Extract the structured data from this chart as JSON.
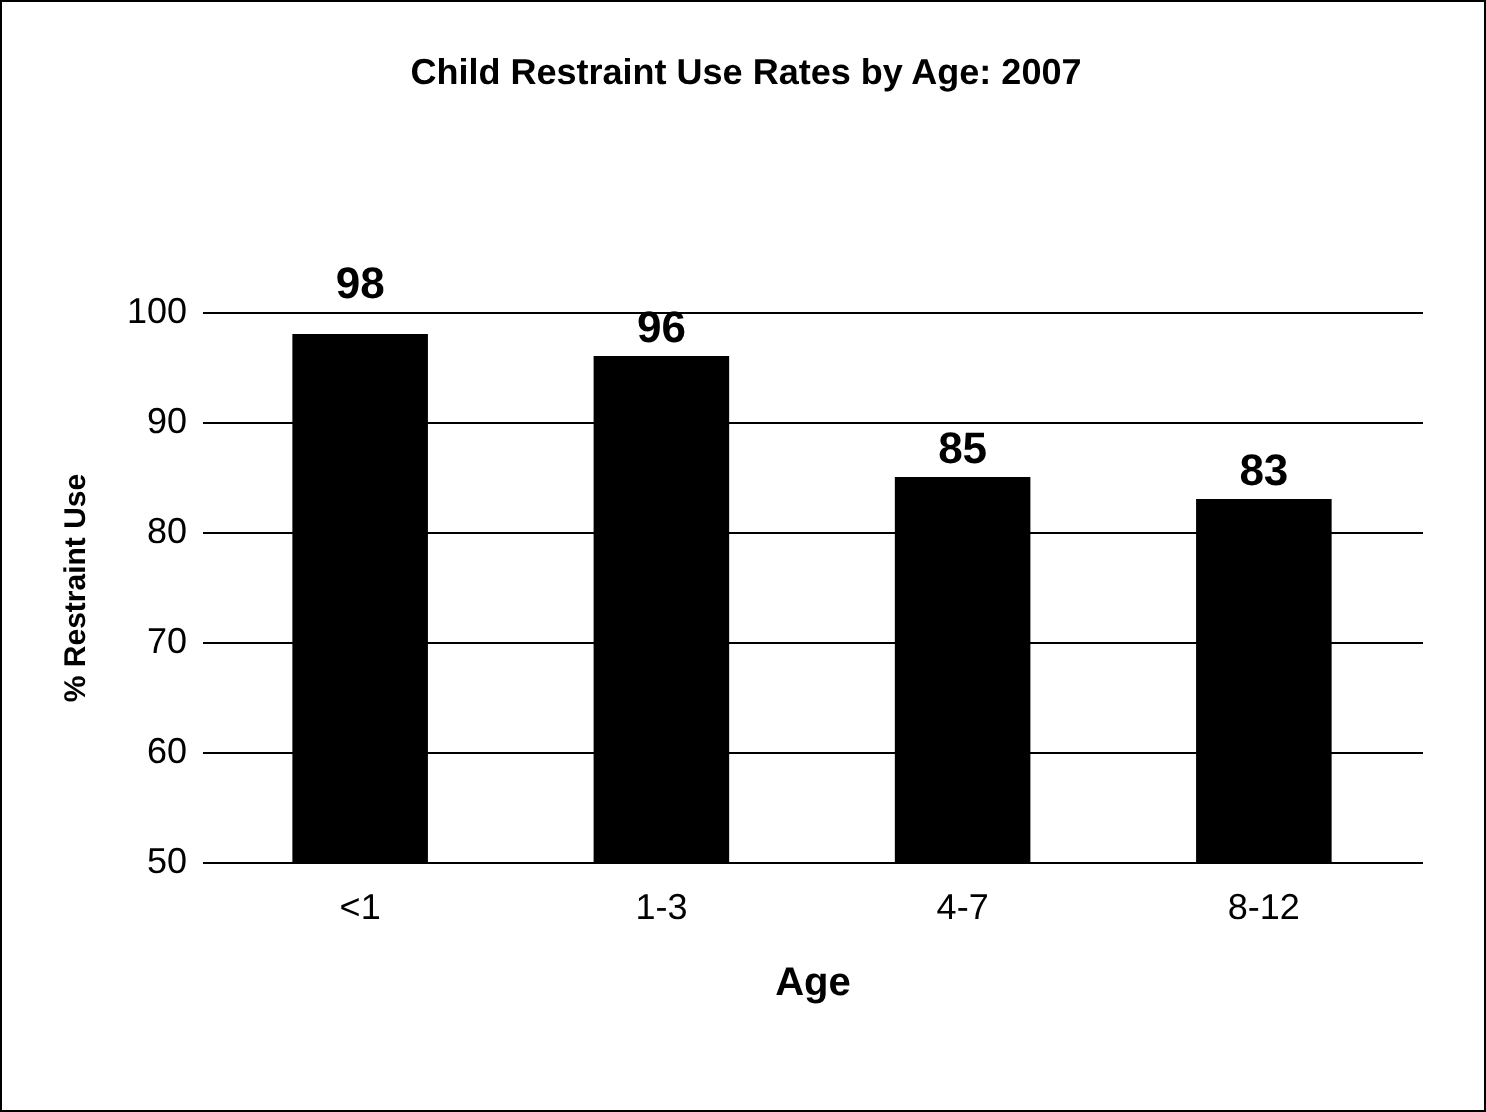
{
  "chart_data": {
    "type": "bar",
    "title": "Child Restraint Use Rates by Age: 2007",
    "xlabel": "Age",
    "ylabel": "% Restraint Use",
    "categories": [
      "<1",
      "1-3",
      "4-7",
      "8-12"
    ],
    "values": [
      98,
      96,
      85,
      83
    ],
    "color": "#000000",
    "ylim": [
      50,
      100
    ],
    "yticks": [
      50,
      60,
      70,
      80,
      90,
      100
    ],
    "grid": "y",
    "data_labels": true
  }
}
